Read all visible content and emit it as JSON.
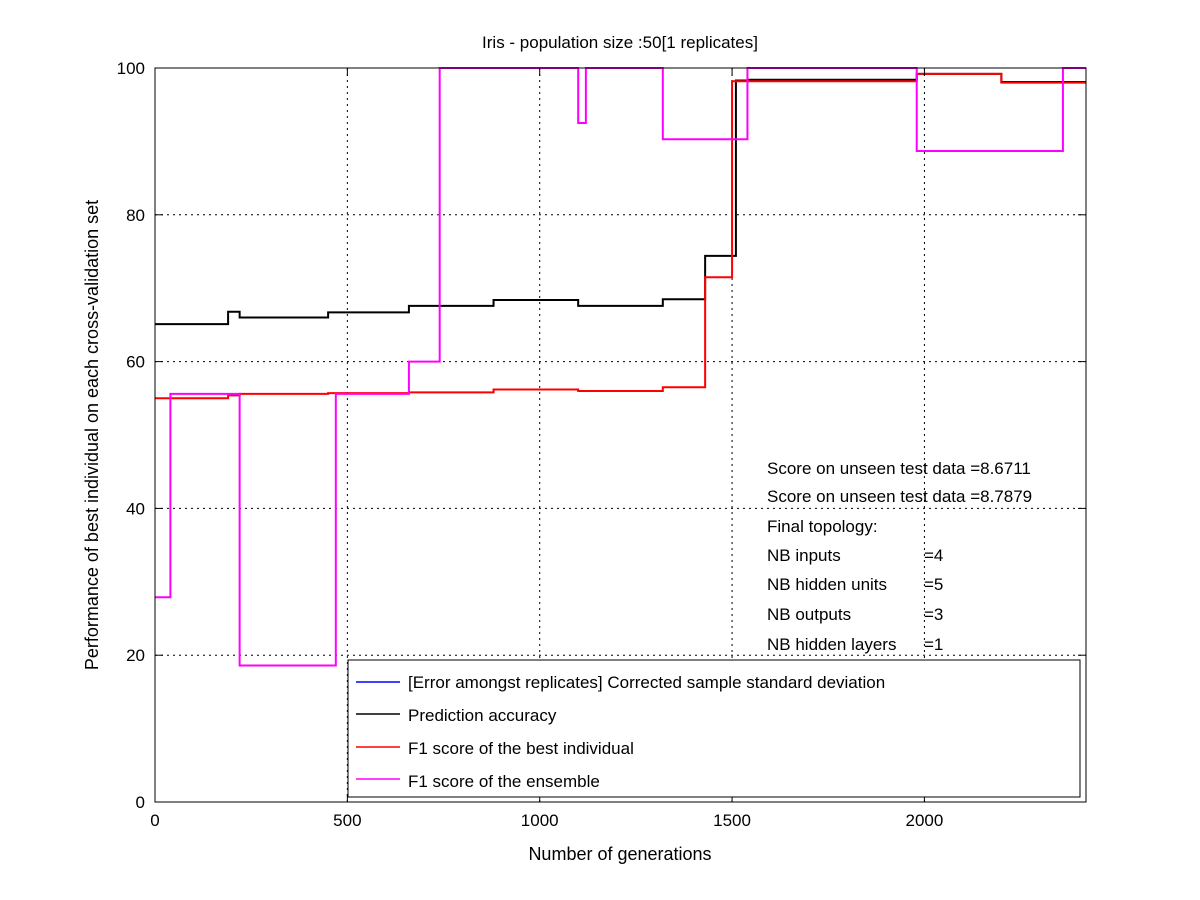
{
  "chart_data": {
    "type": "line",
    "title": "Iris - population size :50[1 replicates]",
    "xlabel": "Number of generations",
    "ylabel": "Performance of best individual on each cross-validation set",
    "xlim": [
      0,
      2420
    ],
    "ylim": [
      0,
      100
    ],
    "x_ticks": [
      0,
      500,
      1000,
      1500,
      2000
    ],
    "y_ticks": [
      0,
      20,
      40,
      60,
      80,
      100
    ],
    "x_tick_labels": [
      "0",
      "500",
      "1000",
      "1500",
      "2000"
    ],
    "y_tick_labels": [
      "0",
      "20",
      "40",
      "60",
      "80",
      "100"
    ],
    "grid": true,
    "legend_position": "bottom-right",
    "step": true,
    "series": [
      {
        "name": "[Error amongst replicates] Corrected sample standard deviation",
        "color": "#0000ff",
        "x": [],
        "y": []
      },
      {
        "name": "Prediction accuracy",
        "color": "#000000",
        "x": [
          0,
          190,
          220,
          450,
          660,
          880,
          1100,
          1320,
          1430,
          1510,
          1540,
          1980,
          2200,
          2420
        ],
        "y": [
          65.1,
          66.8,
          66.0,
          66.7,
          67.6,
          68.4,
          67.6,
          68.5,
          74.4,
          98.3,
          98.4,
          99.2,
          98.1,
          98.1
        ]
      },
      {
        "name": "F1 score of the best individual",
        "color": "#ff0000",
        "x": [
          0,
          190,
          220,
          450,
          660,
          880,
          1100,
          1320,
          1430,
          1500,
          1540,
          1980,
          2200,
          2420
        ],
        "y": [
          55.0,
          55.4,
          55.6,
          55.7,
          55.8,
          56.2,
          56.0,
          56.5,
          71.5,
          98.2,
          98.2,
          99.2,
          98.0,
          98.0
        ]
      },
      {
        "name": "F1 score of the ensemble",
        "color": "#ff00ff",
        "x": [
          0,
          40,
          220,
          470,
          660,
          740,
          1100,
          1120,
          1320,
          1540,
          1980,
          2360,
          2420
        ],
        "y": [
          27.9,
          55.6,
          18.6,
          55.6,
          60.0,
          100.0,
          92.5,
          100.0,
          90.3,
          100.0,
          88.7,
          100.0,
          100.0
        ]
      }
    ],
    "annotations": [
      "Score on unseen test data =8.6711",
      "Score on unseen test data =8.7879",
      "Final topology:",
      "NB inputs",
      "=4",
      "NB hidden units",
      "=5",
      "NB outputs",
      "=3",
      "NB hidden layers",
      "=1"
    ]
  }
}
